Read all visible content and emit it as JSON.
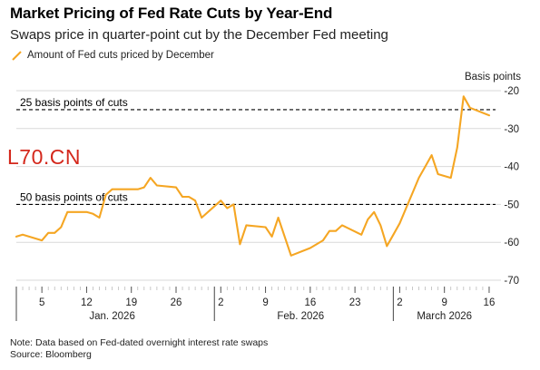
{
  "header": {
    "title": "Market Pricing of Fed Rate Cuts by Year-End",
    "subtitle": "Swaps price in quarter-point cut by the December Fed meeting"
  },
  "watermark": "L70.CN",
  "footer": {
    "note": "Note: Data based on Fed-dated overnight interest rate swaps",
    "source": "Source: Bloomberg"
  },
  "colors": {
    "line": "#f5a623",
    "grid": "#d9d9d9",
    "reference": "#000000"
  },
  "chart_data": {
    "type": "line",
    "title": "Market Pricing of Fed Rate Cuts by Year-End",
    "subtitle": "Swaps price in quarter-point cut by the December Fed meeting",
    "ylabel": "Basis points",
    "ylim": [
      -70,
      -20
    ],
    "yticks": [
      -20,
      -30,
      -40,
      -50,
      -60,
      -70
    ],
    "grid": true,
    "legend_position": "top-left",
    "series": [
      {
        "name": "Amount of Fed cuts priced by December",
        "points": [
          [
            "2026-01-01",
            -58.5
          ],
          [
            "2026-01-02",
            -58
          ],
          [
            "2026-01-05",
            -59.5
          ],
          [
            "2026-01-06",
            -57.5
          ],
          [
            "2026-01-07",
            -57.5
          ],
          [
            "2026-01-08",
            -56
          ],
          [
            "2026-01-09",
            -52
          ],
          [
            "2026-01-12",
            -52
          ],
          [
            "2026-01-13",
            -52.5
          ],
          [
            "2026-01-14",
            -53.5
          ],
          [
            "2026-01-15",
            -47.5
          ],
          [
            "2026-01-16",
            -46
          ],
          [
            "2026-01-19",
            -46
          ],
          [
            "2026-01-20",
            -46
          ],
          [
            "2026-01-21",
            -45.5
          ],
          [
            "2026-01-22",
            -43
          ],
          [
            "2026-01-23",
            -45
          ],
          [
            "2026-01-26",
            -45.5
          ],
          [
            "2026-01-27",
            -48
          ],
          [
            "2026-01-28",
            -48
          ],
          [
            "2026-01-29",
            -49
          ],
          [
            "2026-01-30",
            -53.5
          ],
          [
            "2026-02-02",
            -49
          ],
          [
            "2026-02-03",
            -51
          ],
          [
            "2026-02-04",
            -50
          ],
          [
            "2026-02-05",
            -60.5
          ],
          [
            "2026-02-06",
            -55.5
          ],
          [
            "2026-02-09",
            -56
          ],
          [
            "2026-02-10",
            -58.5
          ],
          [
            "2026-02-11",
            -53.5
          ],
          [
            "2026-02-13",
            -63.5
          ],
          [
            "2026-02-16",
            -61.5
          ],
          [
            "2026-02-18",
            -59.5
          ],
          [
            "2026-02-19",
            -57
          ],
          [
            "2026-02-20",
            -57
          ],
          [
            "2026-02-21",
            -55.5
          ],
          [
            "2026-02-24",
            -58
          ],
          [
            "2026-02-25",
            -54
          ],
          [
            "2026-02-26",
            -52
          ],
          [
            "2026-02-27",
            -55.5
          ],
          [
            "2026-02-28",
            -61
          ],
          [
            "2026-03-01",
            -58
          ],
          [
            "2026-03-02",
            -55
          ],
          [
            "2026-03-03",
            -51
          ],
          [
            "2026-03-04",
            -47
          ],
          [
            "2026-03-05",
            -43
          ],
          [
            "2026-03-06",
            -40
          ],
          [
            "2026-03-07",
            -37
          ],
          [
            "2026-03-08",
            -42
          ],
          [
            "2026-03-10",
            -43
          ],
          [
            "2026-03-11",
            -35
          ],
          [
            "2026-03-12",
            -21.5
          ],
          [
            "2026-03-13",
            -24.5
          ],
          [
            "2026-03-16",
            -26.5
          ]
        ]
      }
    ],
    "reference_lines": [
      {
        "value": -25,
        "label": "25 basis points of cuts"
      },
      {
        "value": -50,
        "label": "50 basis points of cuts"
      }
    ],
    "x_ticks": [
      {
        "date": "2026-01-05",
        "label": "5"
      },
      {
        "date": "2026-01-12",
        "label": "12"
      },
      {
        "date": "2026-01-19",
        "label": "19"
      },
      {
        "date": "2026-01-26",
        "label": "26"
      },
      {
        "date": "2026-02-02",
        "label": "2"
      },
      {
        "date": "2026-02-09",
        "label": "9"
      },
      {
        "date": "2026-02-16",
        "label": "16"
      },
      {
        "date": "2026-02-23",
        "label": "23"
      },
      {
        "date": "2026-03-02",
        "label": "2"
      },
      {
        "date": "2026-03-09",
        "label": "9"
      },
      {
        "date": "2026-03-16",
        "label": "16"
      }
    ],
    "x_months": [
      {
        "label": "Jan. 2026",
        "start": "2026-01-01",
        "end": "2026-01-31"
      },
      {
        "label": "Feb. 2026",
        "start": "2026-02-01",
        "end": "2026-02-28"
      },
      {
        "label": "March 2026",
        "start": "2026-03-01",
        "end": "2026-03-17"
      }
    ],
    "x_range": [
      "2026-01-01",
      "2026-03-17"
    ]
  }
}
